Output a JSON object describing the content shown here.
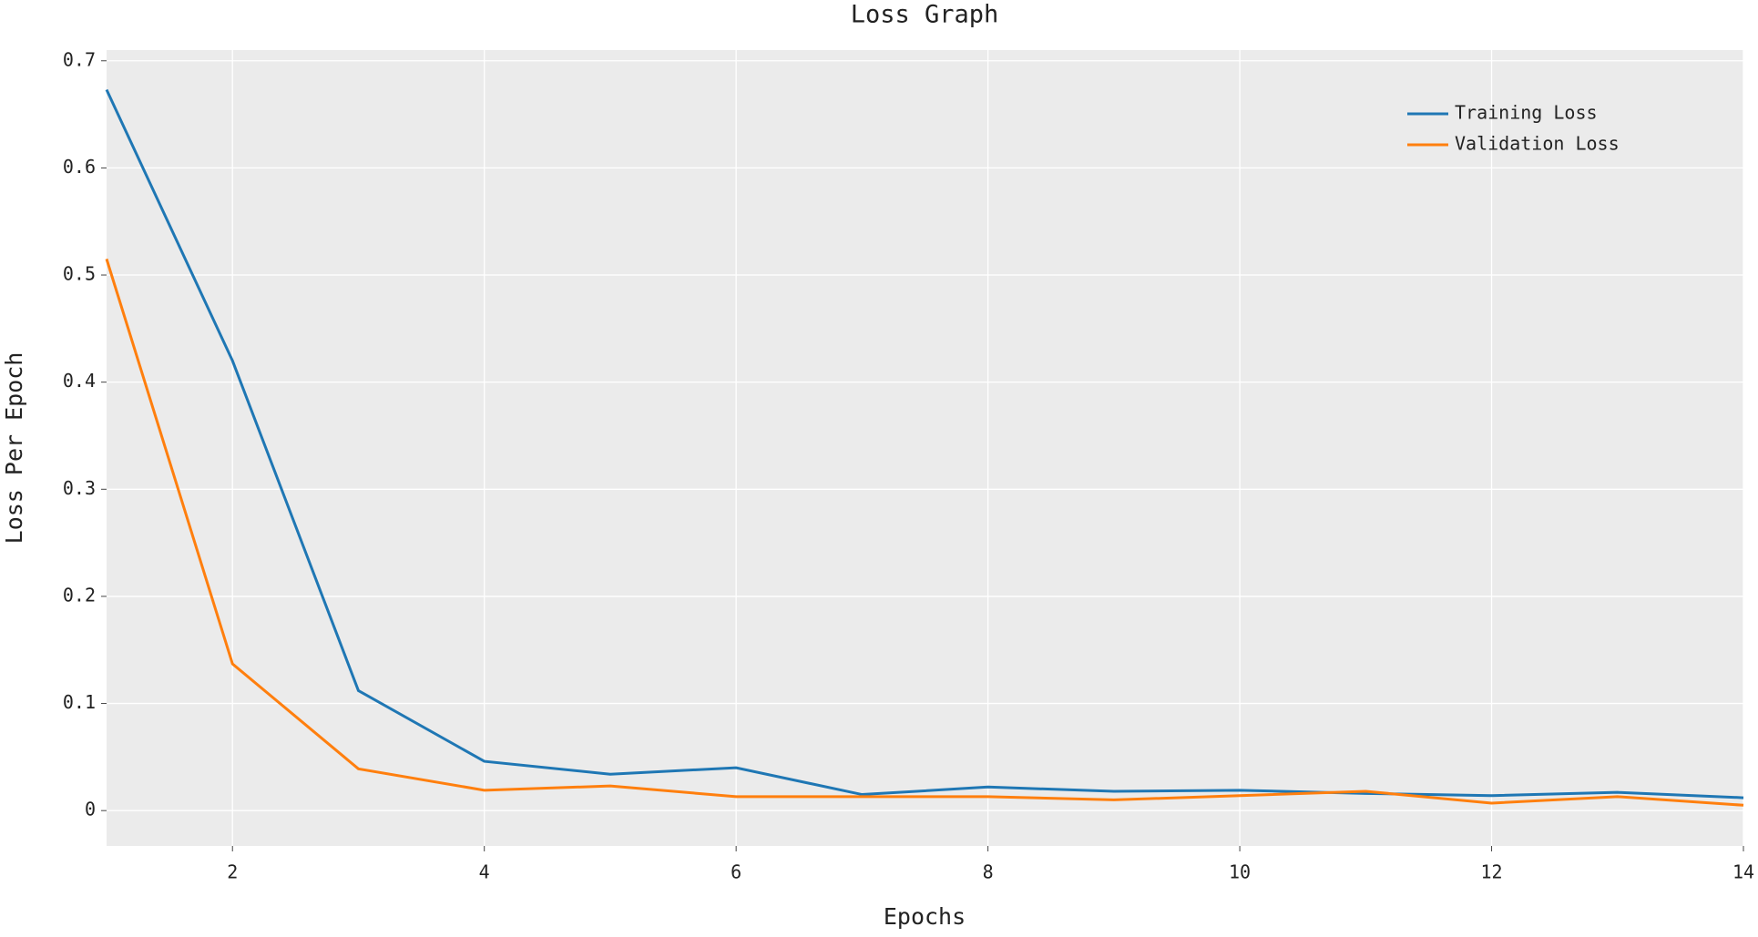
{
  "chart_data": {
    "type": "line",
    "title": "Loss Graph",
    "x_label": "Epochs",
    "y_label": "Loss Per Epoch",
    "x": [
      1,
      2,
      3,
      4,
      5,
      6,
      7,
      8,
      9,
      10,
      11,
      12,
      13,
      14
    ],
    "series": [
      {
        "name": "Training Loss",
        "color": "#1f77b4",
        "values": [
          0.673,
          0.42,
          0.112,
          0.046,
          0.034,
          0.04,
          0.015,
          0.022,
          0.018,
          0.019,
          0.016,
          0.014,
          0.017,
          0.012
        ]
      },
      {
        "name": "Validation Loss",
        "color": "#ff7f0e",
        "values": [
          0.515,
          0.137,
          0.039,
          0.019,
          0.023,
          0.013,
          0.013,
          0.013,
          0.01,
          0.014,
          0.018,
          0.007,
          0.013,
          0.005
        ]
      }
    ],
    "xlim": [
      1,
      14
    ],
    "xticks": [
      2,
      4,
      6,
      8,
      10,
      12,
      14
    ],
    "ylim": [
      -0.033,
      0.71
    ],
    "yticks": [
      0,
      0.1,
      0.2,
      0.3,
      0.4,
      0.5,
      0.6,
      0.7
    ],
    "grid": true,
    "legend": "upper right"
  }
}
